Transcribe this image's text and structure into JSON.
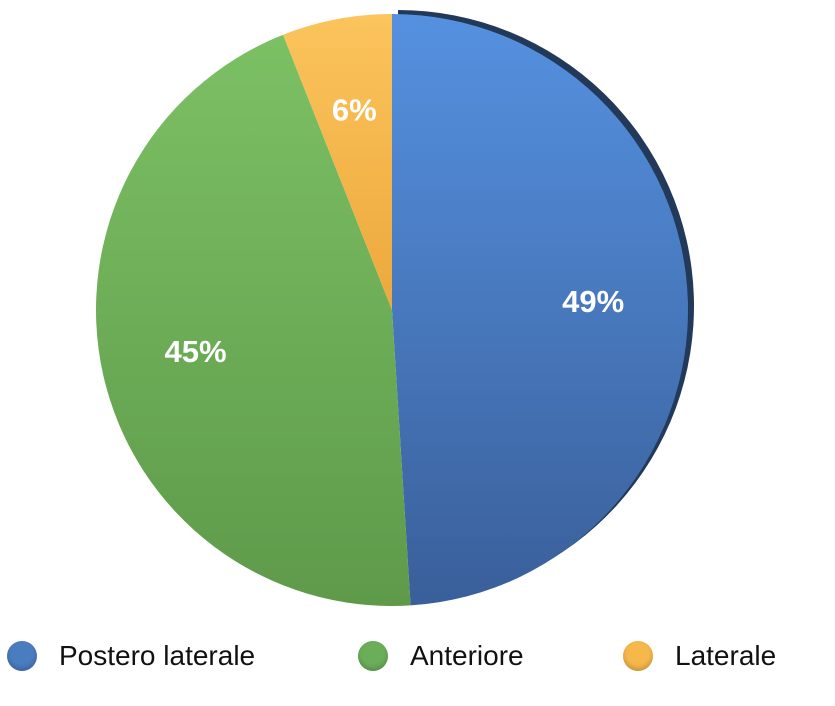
{
  "chart_data": {
    "type": "pie",
    "categories": [
      "Postero laterale",
      "Anteriore",
      "Laterale"
    ],
    "values": [
      49,
      45,
      6
    ],
    "labels": [
      "49%",
      "45%",
      "6%"
    ],
    "colors": [
      "#4A7CC0",
      "#6BAE5A",
      "#F6B84A"
    ],
    "legend_position": "bottom",
    "title": ""
  }
}
